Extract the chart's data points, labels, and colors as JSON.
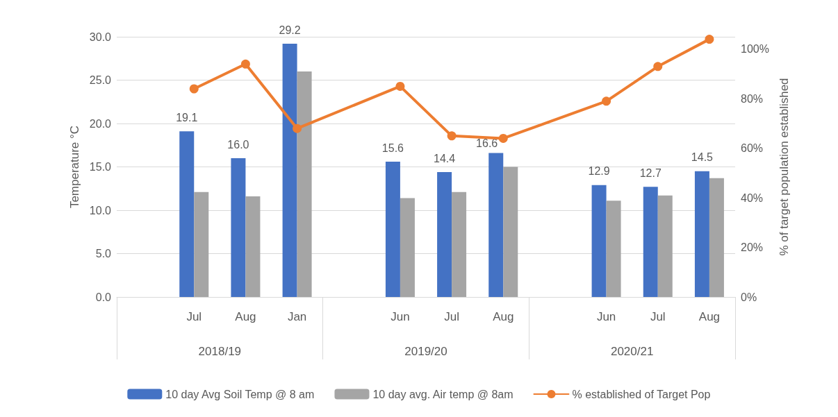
{
  "chart_data": {
    "type": "bar",
    "ylabel": "Temperature °C",
    "y2label": "% of target population established",
    "categories": [
      null,
      "Jul",
      "Aug",
      "Jan",
      null,
      "Jun",
      "Jul",
      "Aug",
      null,
      "Jun",
      "Jul",
      "Aug"
    ],
    "annotations": [
      "2018/19",
      "2019/20",
      "2020/21"
    ],
    "series": [
      {
        "name": "10 day Avg Soil Temp @ 8 am",
        "color": "#4472c4",
        "values": [
          null,
          19.1,
          16.0,
          29.2,
          null,
          15.6,
          14.4,
          16.6,
          null,
          12.9,
          12.7,
          14.5
        ],
        "value_labels": [
          null,
          "19.1",
          "16.0",
          "29.2",
          null,
          "15.6",
          "14.4",
          "16.6",
          null,
          "12.9",
          "12.7",
          "14.5"
        ]
      },
      {
        "name": "10 day avg. Air temp @ 8am",
        "color": "#a5a5a5",
        "values": [
          null,
          12.1,
          11.6,
          26.0,
          null,
          11.4,
          12.1,
          15.0,
          null,
          11.1,
          11.7,
          13.7
        ]
      },
      {
        "name": "% established of Target Pop",
        "type": "line",
        "axis": "y2",
        "color": "#ed7d31",
        "values": [
          null,
          84,
          94,
          68,
          null,
          85,
          65,
          64,
          null,
          79,
          93,
          104
        ]
      }
    ],
    "ylim": [
      0,
      30
    ],
    "yticks": [
      {
        "value": 0,
        "label": "0.0"
      },
      {
        "value": 5,
        "label": "5.0"
      },
      {
        "value": 10,
        "label": "10.0"
      },
      {
        "value": 15,
        "label": "15.0"
      },
      {
        "value": 20,
        "label": "20.0"
      },
      {
        "value": 25,
        "label": "25.0"
      },
      {
        "value": 30,
        "label": "30.0"
      }
    ],
    "y2lim": [
      0,
      105
    ],
    "y2ticks": [
      {
        "value": 0,
        "label": "0%"
      },
      {
        "value": 20,
        "label": "20%"
      },
      {
        "value": 40,
        "label": "40%"
      },
      {
        "value": 60,
        "label": "60%"
      },
      {
        "value": 80,
        "label": "80%"
      },
      {
        "value": 100,
        "label": "100%"
      }
    ],
    "grid": "y",
    "legend": "bottom",
    "marker": "circle"
  }
}
